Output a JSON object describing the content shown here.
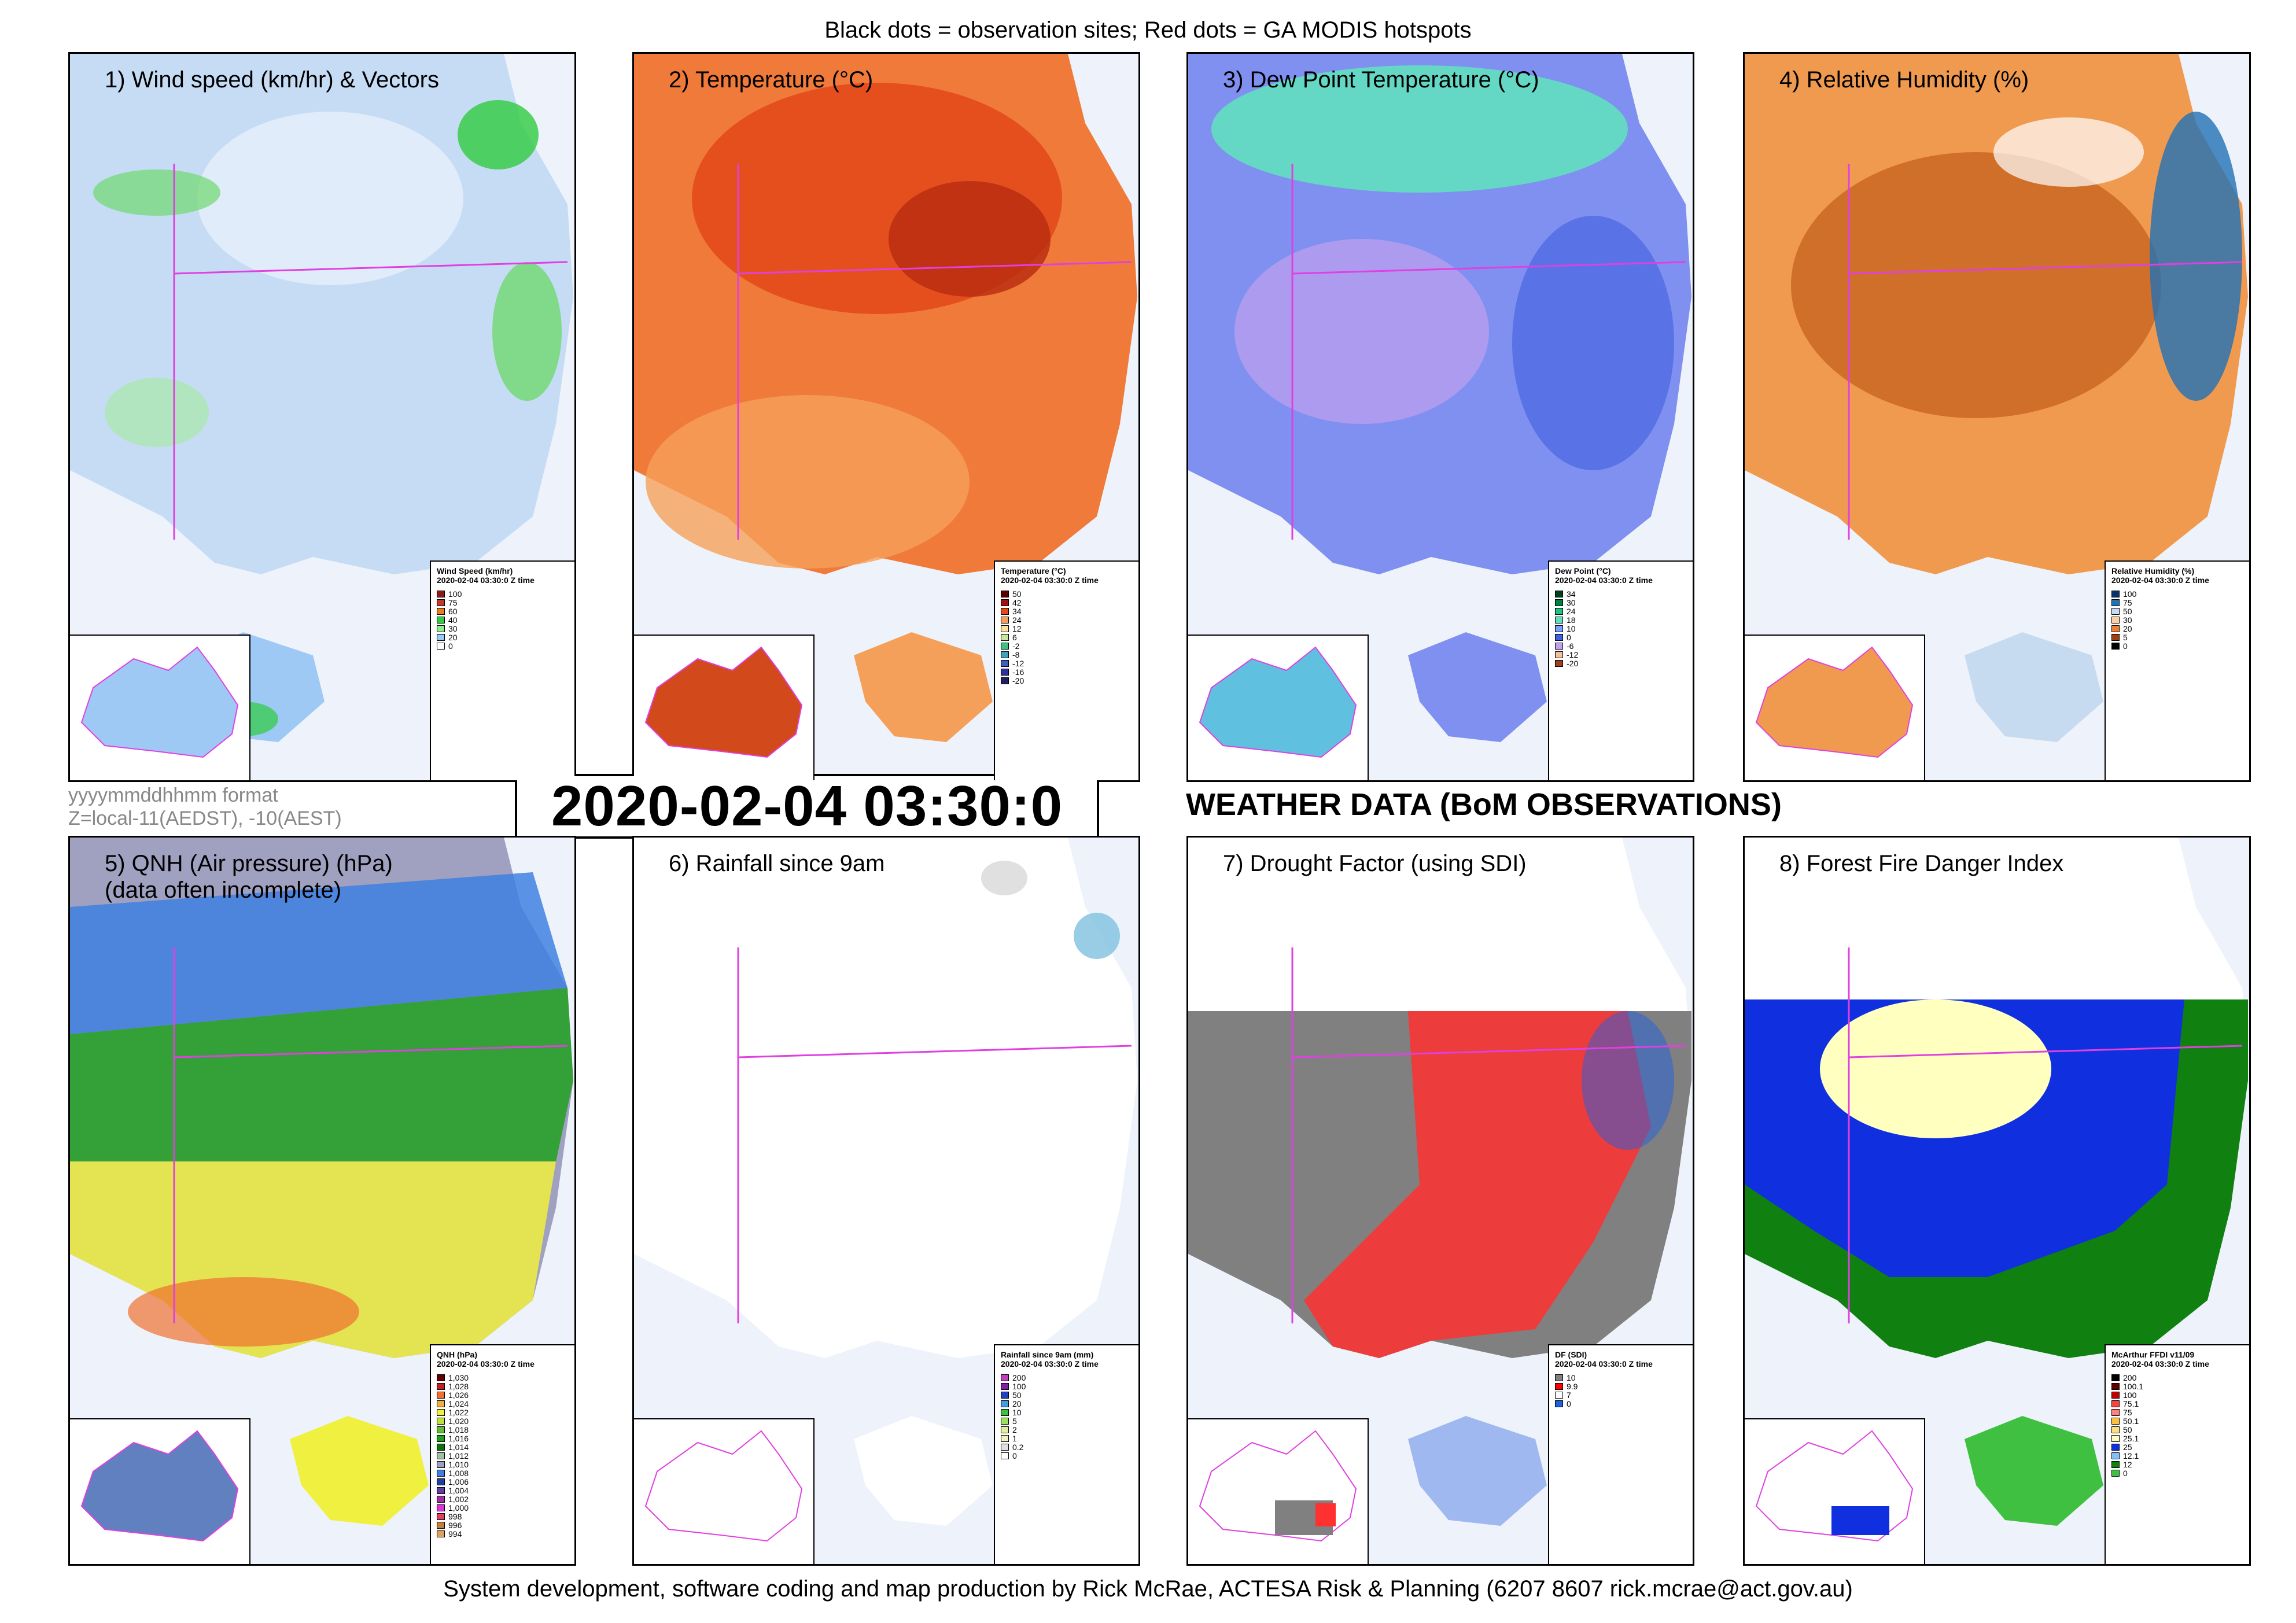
{
  "header": {
    "caption": "Black dots = observation sites; Red dots = GA MODIS hotspots"
  },
  "timestamp": "2020-02-04 03:30:0",
  "format_note": {
    "line1": "yyyymmddhhmm format",
    "line2": "Z=local-11(AEDST), -10(AEST)"
  },
  "heading": "WEATHER DATA (BoM OBSERVATIONS)",
  "footer": {
    "caption": "System development, software coding and map production by Rick McRae, ACTESA Risk & Planning (6207 8607 rick.mcrae@act.gov.au)"
  },
  "colors": {
    "border_magenta": "#e040e0",
    "ocean": "#eef3fb",
    "hotspot": "#ff0000",
    "site": "#000000"
  },
  "panels": [
    {
      "id": "wind",
      "title": "1) Wind speed (km/hr) & Vectors",
      "legend": {
        "title": "Wind Speed (km/hr)",
        "subtitle": "2020-02-04 03:30:0 Z time",
        "entries": [
          {
            "label": "100",
            "color": "#8b1a1a"
          },
          {
            "label": "75",
            "color": "#c0392b"
          },
          {
            "label": "60",
            "color": "#e67e22"
          },
          {
            "label": "40",
            "color": "#2ecc40"
          },
          {
            "label": "30",
            "color": "#90ee90"
          },
          {
            "label": "20",
            "color": "#9ec9f5"
          },
          {
            "label": "0",
            "color": "#ffffff"
          }
        ]
      }
    },
    {
      "id": "temperature",
      "title": "2) Temperature (°C)",
      "legend": {
        "title": "Temperature (°C)",
        "subtitle": "2020-02-04 03:30:0 Z time",
        "entries": [
          {
            "label": "50",
            "color": "#5a0000"
          },
          {
            "label": "42",
            "color": "#a01010"
          },
          {
            "label": "34",
            "color": "#e34a1c"
          },
          {
            "label": "24",
            "color": "#f5a05a"
          },
          {
            "label": "12",
            "color": "#fde0a0"
          },
          {
            "label": "6",
            "color": "#c8e6a0"
          },
          {
            "label": "-2",
            "color": "#40c080"
          },
          {
            "label": "-8",
            "color": "#40a0c0"
          },
          {
            "label": "-12",
            "color": "#4060c0"
          },
          {
            "label": "-16",
            "color": "#3030a0"
          },
          {
            "label": "-20",
            "color": "#202060"
          }
        ]
      }
    },
    {
      "id": "dewpoint",
      "title": "3) Dew Point Temperature (°C)",
      "legend": {
        "title": "Dew Point (°C)",
        "subtitle": "2020-02-04 03:30:0 Z time",
        "entries": [
          {
            "label": "34",
            "color": "#004020"
          },
          {
            "label": "30",
            "color": "#008040"
          },
          {
            "label": "24",
            "color": "#20c080"
          },
          {
            "label": "18",
            "color": "#60e0c0"
          },
          {
            "label": "10",
            "color": "#80a0ff"
          },
          {
            "label": "0",
            "color": "#4060e0"
          },
          {
            "label": "-6",
            "color": "#c0a0f0"
          },
          {
            "label": "-12",
            "color": "#f0c0a0"
          },
          {
            "label": "-20",
            "color": "#a04020"
          }
        ]
      }
    },
    {
      "id": "humidity",
      "title": "4) Relative Humidity (%)",
      "legend": {
        "title": "Relative Humidity (%)",
        "subtitle": "2020-02-04 03:30:0 Z time",
        "entries": [
          {
            "label": "100",
            "color": "#08306b"
          },
          {
            "label": "75",
            "color": "#2171b5"
          },
          {
            "label": "50",
            "color": "#c6dbef"
          },
          {
            "label": "30",
            "color": "#fdd0a2"
          },
          {
            "label": "20",
            "color": "#f08030"
          },
          {
            "label": "5",
            "color": "#a04010"
          },
          {
            "label": "0",
            "color": "#000000"
          }
        ]
      }
    },
    {
      "id": "pressure",
      "title": "5) QNH (Air pressure) (hPa)\n(data often incomplete)",
      "legend": {
        "title": "QNH (hPa)",
        "subtitle": "2020-02-04 03:30:0 Z time",
        "entries": [
          {
            "label": "1,030",
            "color": "#600000"
          },
          {
            "label": "1,028",
            "color": "#c02020"
          },
          {
            "label": "1,026",
            "color": "#f07030"
          },
          {
            "label": "1,024",
            "color": "#f0b040"
          },
          {
            "label": "1,022",
            "color": "#f0f040"
          },
          {
            "label": "1,020",
            "color": "#c0e040"
          },
          {
            "label": "1,018",
            "color": "#60c030"
          },
          {
            "label": "1,016",
            "color": "#20a020"
          },
          {
            "label": "1,014",
            "color": "#107010"
          },
          {
            "label": "1,012",
            "color": "#a0c0a0"
          },
          {
            "label": "1,010",
            "color": "#a0a0c0"
          },
          {
            "label": "1,008",
            "color": "#4080e0"
          },
          {
            "label": "1,006",
            "color": "#2040a0"
          },
          {
            "label": "1,004",
            "color": "#6040a0"
          },
          {
            "label": "1,002",
            "color": "#a030a0"
          },
          {
            "label": "1,000",
            "color": "#e030e0"
          },
          {
            "label": "998",
            "color": "#e04060"
          },
          {
            "label": "996",
            "color": "#c08040"
          },
          {
            "label": "994",
            "color": "#e0a060"
          }
        ]
      }
    },
    {
      "id": "rainfall",
      "title": "6) Rainfall since 9am",
      "legend": {
        "title": "Rainfall since 9am (mm)",
        "subtitle": "2020-02-04 03:30:0 Z time",
        "entries": [
          {
            "label": "200",
            "color": "#c040c0"
          },
          {
            "label": "100",
            "color": "#8020a0"
          },
          {
            "label": "50",
            "color": "#2040c0"
          },
          {
            "label": "20",
            "color": "#40a0e0"
          },
          {
            "label": "10",
            "color": "#40c040"
          },
          {
            "label": "5",
            "color": "#a0e060"
          },
          {
            "label": "2",
            "color": "#e0f0a0"
          },
          {
            "label": "1",
            "color": "#f0f0c0"
          },
          {
            "label": "0.2",
            "color": "#e0e0e0"
          },
          {
            "label": "0",
            "color": "#ffffff"
          }
        ]
      }
    },
    {
      "id": "drought",
      "title": "7) Drought Factor (using SDI)",
      "legend": {
        "title": "DF (SDI)",
        "subtitle": "2020-02-04 03:30:0 Z time",
        "entries": [
          {
            "label": "10",
            "color": "#808080"
          },
          {
            "label": "9.9",
            "color": "#ff0000"
          },
          {
            "label": "7",
            "color": "#ffffff"
          },
          {
            "label": "0",
            "color": "#2060e0"
          }
        ]
      }
    },
    {
      "id": "ffdi",
      "title": "8) Forest Fire Danger Index",
      "legend": {
        "title": "McArthur FFDI v11/09",
        "subtitle": "2020-02-04 03:30:0 Z time",
        "entries": [
          {
            "label": "200",
            "color": "#000000"
          },
          {
            "label": "100.1",
            "color": "#600000"
          },
          {
            "label": "100",
            "color": "#c00000"
          },
          {
            "label": "75.1",
            "color": "#ff4040"
          },
          {
            "label": "75",
            "color": "#ff8080"
          },
          {
            "label": "50.1",
            "color": "#ffc040"
          },
          {
            "label": "50",
            "color": "#ffe080"
          },
          {
            "label": "25.1",
            "color": "#ffffc0"
          },
          {
            "label": "25",
            "color": "#1030e0"
          },
          {
            "label": "12.1",
            "color": "#80c0ff"
          },
          {
            "label": "12",
            "color": "#108010"
          },
          {
            "label": "0",
            "color": "#40c040"
          }
        ]
      }
    }
  ]
}
